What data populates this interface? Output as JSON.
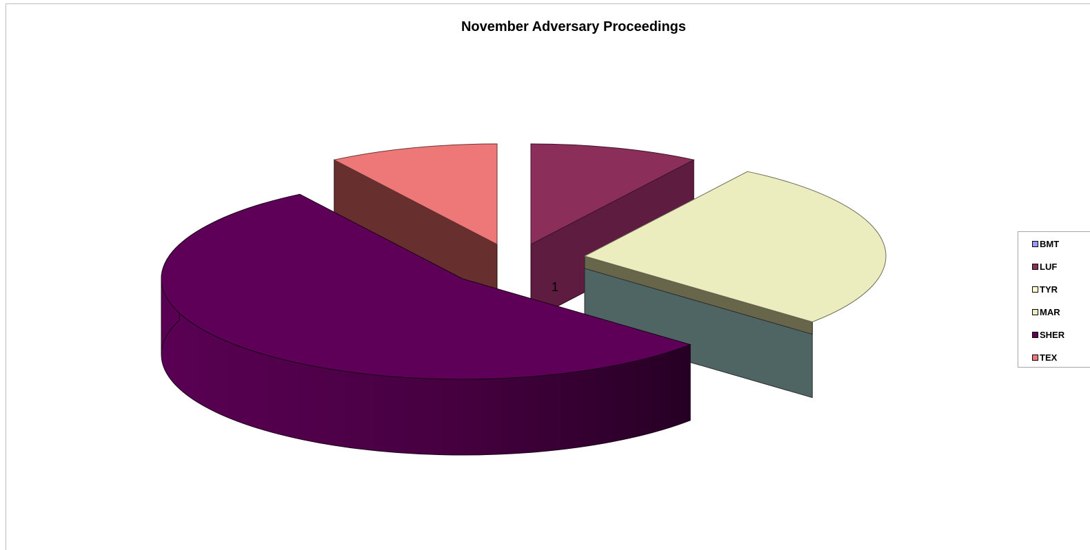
{
  "chart_data": {
    "type": "pie",
    "title": "November Adversary Proceedings",
    "category_label": "1",
    "slices": [
      {
        "name": "BMT",
        "value": 0,
        "color": "#9999FF"
      },
      {
        "name": "LUF",
        "value": 1,
        "color": "#8B2E5A"
      },
      {
        "name": "TYR",
        "value": 0,
        "color": "#FFFFCC"
      },
      {
        "name": "MAR",
        "value": 3,
        "color": "#ECEDBF"
      },
      {
        "name": "SHER",
        "value": 6,
        "color": "#5E0057"
      },
      {
        "name": "TEX",
        "value": 1,
        "color": "#EE7777"
      }
    ],
    "legend_position": "right",
    "style": "3d-exploded"
  }
}
